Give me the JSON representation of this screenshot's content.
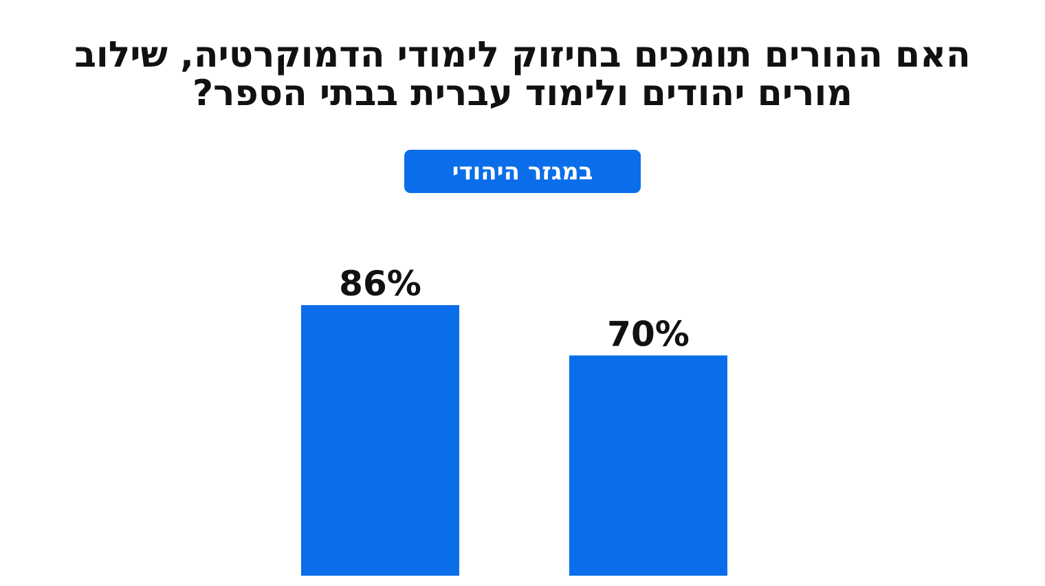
{
  "header": {
    "title": "האם ההורים תומכים בחיזוק לימודי הדמוקרטיה, שילוב מורים יהודים ולימוד עברית בבתי הספר?",
    "badge": "במגזר היהודי"
  },
  "colors": {
    "bar": "#0a6eea",
    "text": "#111111",
    "badge_text": "#ffffff"
  },
  "chart_data": {
    "type": "bar",
    "title": "האם ההורים תומכים בחיזוק לימודי הדמוקרטיה, שילוב מורים יהודים ולימוד עברית בבתי הספר?",
    "subtitle": "במגזר היהודי",
    "categories": [
      "",
      ""
    ],
    "values": [
      86,
      70
    ],
    "data_labels": [
      "86%",
      "70%"
    ],
    "ylim": [
      0,
      100
    ],
    "grid": false,
    "legend": "none"
  }
}
